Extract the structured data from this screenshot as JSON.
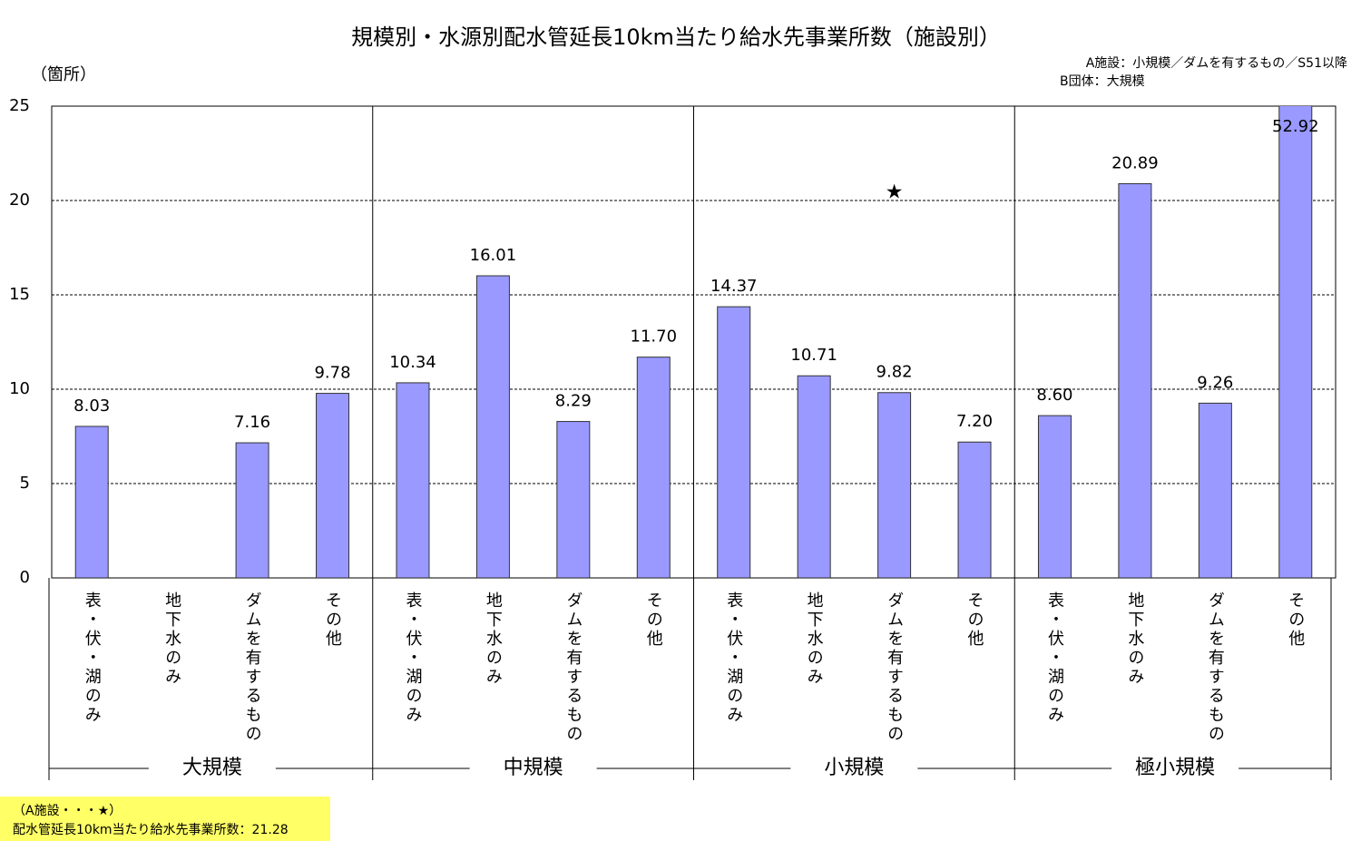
{
  "chart_data": {
    "type": "bar",
    "title": "規模別・水源別配水管延長10km当たり給水先事業所数（施設別）",
    "y_axis_label": "（箇所）",
    "legend_lines": [
      "A施設：小規模／ダムを有するもの／S51以降",
      "B団体：大規模"
    ],
    "note_lines": [
      "（A施設・・・★）",
      "配水管延長10km当たり給水先事業所数：21.28"
    ],
    "groups": [
      "大規模",
      "中規模",
      "小規模",
      "極小規模"
    ],
    "categories": [
      "表・伏・湖のみ",
      "地下水のみ",
      "ダムを有するもの",
      "その他",
      "表・伏・湖のみ",
      "地下水のみ",
      "ダムを有するもの",
      "その他",
      "表・伏・湖のみ",
      "地下水のみ",
      "ダムを有するもの",
      "その他",
      "表・伏・湖のみ",
      "地下水のみ",
      "ダムを有するもの",
      "その他"
    ],
    "values": [
      8.03,
      null,
      7.16,
      9.78,
      10.34,
      16.01,
      8.29,
      11.7,
      14.37,
      10.71,
      9.82,
      7.2,
      8.6,
      20.89,
      9.26,
      52.92
    ],
    "value_labels": [
      "8.03",
      null,
      "7.16",
      "9.78",
      "10.34",
      "16.01",
      "8.29",
      "11.70",
      "14.37",
      "10.71",
      "9.82",
      "7.20",
      "8.60",
      "20.89",
      "9.26",
      "52.92"
    ],
    "marker_values": [
      null,
      null,
      null,
      null,
      null,
      null,
      null,
      null,
      null,
      null,
      20.4,
      null,
      null,
      null,
      null,
      null
    ],
    "color": "#9999ff",
    "marker_color": "#000099",
    "ylim": [
      0,
      25
    ],
    "yticks": [
      0,
      5,
      10,
      15,
      20,
      25
    ],
    "grid": true
  }
}
